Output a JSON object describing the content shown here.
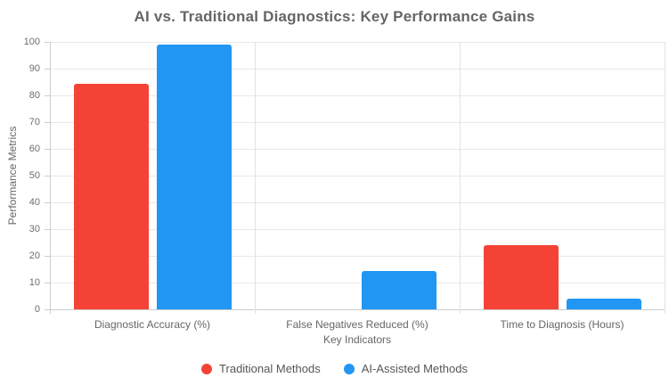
{
  "chart_data": {
    "type": "bar",
    "title": "AI vs. Traditional Diagnostics: Key Performance Gains",
    "xlabel": "Key Indicators",
    "ylabel": "Performance Metrics",
    "categories": [
      "Diagnostic Accuracy (%)",
      "False Negatives Reduced (%)",
      "Time to Diagnosis (Hours)"
    ],
    "series": [
      {
        "name": "Traditional Methods",
        "color": "#F44336",
        "values": [
          84.5,
          0,
          24
        ]
      },
      {
        "name": "AI-Assisted Methods",
        "color": "#2196F3",
        "values": [
          99,
          14.3,
          4
        ]
      }
    ],
    "ylim": [
      0,
      100
    ],
    "ytick_step": 10,
    "grid": true,
    "legend_position": "bottom"
  }
}
